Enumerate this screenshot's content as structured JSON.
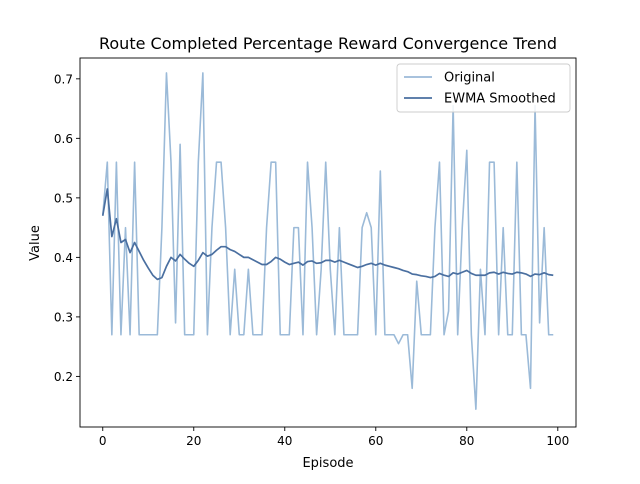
{
  "chart_data": {
    "type": "line",
    "title": "Route Completed Percentage Reward Convergence Trend",
    "xlabel": "Episode",
    "ylabel": "Value",
    "xlim": [
      -5,
      104
    ],
    "ylim": [
      0.115,
      0.735
    ],
    "xticks": [
      0,
      20,
      40,
      60,
      80,
      100
    ],
    "yticks": [
      0.2,
      0.3,
      0.4,
      0.5,
      0.6,
      0.7
    ],
    "xtick_labels": [
      "0",
      "20",
      "40",
      "60",
      "80",
      "100"
    ],
    "ytick_labels": [
      "0.2",
      "0.3",
      "0.4",
      "0.5",
      "0.6",
      "0.7"
    ],
    "grid": false,
    "legend_position": "top-right",
    "x": [
      0,
      1,
      2,
      3,
      4,
      5,
      6,
      7,
      8,
      9,
      10,
      11,
      12,
      13,
      14,
      15,
      16,
      17,
      18,
      19,
      20,
      21,
      22,
      23,
      24,
      25,
      26,
      27,
      28,
      29,
      30,
      31,
      32,
      33,
      34,
      35,
      36,
      37,
      38,
      39,
      40,
      41,
      42,
      43,
      44,
      45,
      46,
      47,
      48,
      49,
      50,
      51,
      52,
      53,
      54,
      55,
      56,
      57,
      58,
      59,
      60,
      61,
      62,
      63,
      64,
      65,
      66,
      67,
      68,
      69,
      70,
      71,
      72,
      73,
      74,
      75,
      76,
      77,
      78,
      79,
      80,
      81,
      82,
      83,
      84,
      85,
      86,
      87,
      88,
      89,
      90,
      91,
      92,
      93,
      94,
      95,
      96,
      97,
      98,
      99
    ],
    "series": [
      {
        "name": "Original",
        "color": "#9bbad8",
        "values": [
          0.47,
          0.56,
          0.27,
          0.56,
          0.27,
          0.45,
          0.27,
          0.56,
          0.27,
          0.27,
          0.27,
          0.27,
          0.27,
          0.45,
          0.71,
          0.56,
          0.29,
          0.59,
          0.27,
          0.27,
          0.27,
          0.56,
          0.71,
          0.27,
          0.45,
          0.56,
          0.56,
          0.45,
          0.27,
          0.38,
          0.27,
          0.27,
          0.38,
          0.27,
          0.27,
          0.27,
          0.45,
          0.56,
          0.56,
          0.27,
          0.27,
          0.27,
          0.45,
          0.45,
          0.27,
          0.56,
          0.45,
          0.27,
          0.38,
          0.56,
          0.38,
          0.27,
          0.45,
          0.27,
          0.27,
          0.27,
          0.27,
          0.45,
          0.475,
          0.45,
          0.27,
          0.545,
          0.27,
          0.27,
          0.27,
          0.255,
          0.27,
          0.27,
          0.18,
          0.36,
          0.27,
          0.27,
          0.27,
          0.45,
          0.56,
          0.27,
          0.31,
          0.655,
          0.27,
          0.45,
          0.58,
          0.27,
          0.145,
          0.38,
          0.27,
          0.56,
          0.56,
          0.27,
          0.45,
          0.27,
          0.27,
          0.56,
          0.27,
          0.27,
          0.18,
          0.655,
          0.29,
          0.45,
          0.27,
          0.27
        ]
      },
      {
        "name": "EWMA Smoothed",
        "color": "#4a6fa0",
        "values": [
          0.47,
          0.515,
          0.435,
          0.465,
          0.425,
          0.43,
          0.408,
          0.425,
          0.41,
          0.395,
          0.382,
          0.37,
          0.363,
          0.366,
          0.385,
          0.4,
          0.394,
          0.405,
          0.397,
          0.39,
          0.385,
          0.395,
          0.408,
          0.402,
          0.405,
          0.412,
          0.418,
          0.418,
          0.413,
          0.41,
          0.405,
          0.4,
          0.4,
          0.396,
          0.392,
          0.388,
          0.388,
          0.393,
          0.4,
          0.397,
          0.392,
          0.388,
          0.39,
          0.392,
          0.387,
          0.393,
          0.394,
          0.39,
          0.391,
          0.395,
          0.395,
          0.392,
          0.395,
          0.392,
          0.389,
          0.386,
          0.383,
          0.385,
          0.388,
          0.39,
          0.387,
          0.39,
          0.387,
          0.385,
          0.383,
          0.381,
          0.378,
          0.376,
          0.372,
          0.371,
          0.369,
          0.368,
          0.366,
          0.368,
          0.373,
          0.37,
          0.368,
          0.374,
          0.372,
          0.375,
          0.378,
          0.373,
          0.37,
          0.37,
          0.37,
          0.374,
          0.375,
          0.372,
          0.375,
          0.373,
          0.372,
          0.375,
          0.374,
          0.372,
          0.368,
          0.372,
          0.371,
          0.374,
          0.371,
          0.37
        ]
      }
    ]
  }
}
